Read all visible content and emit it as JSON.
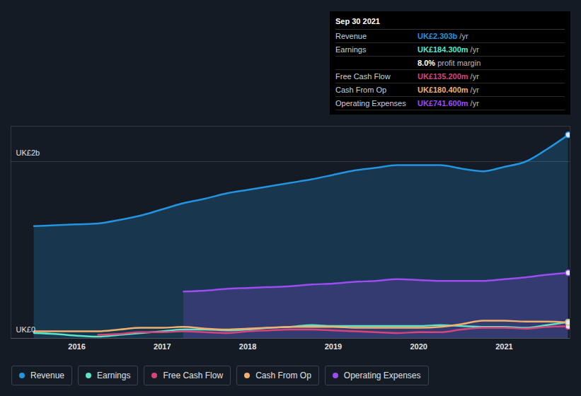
{
  "chart_data": {
    "type": "line",
    "x": [
      2015.5,
      2015.75,
      2016.0,
      2016.25,
      2016.5,
      2016.75,
      2017.0,
      2017.25,
      2017.5,
      2017.75,
      2018.0,
      2018.25,
      2018.5,
      2018.75,
      2019.0,
      2019.25,
      2019.5,
      2019.75,
      2020.0,
      2020.25,
      2020.5,
      2020.75,
      2021.0,
      2021.25,
      2021.5,
      2021.75
    ],
    "xlim": [
      2015.23,
      2021.77
    ],
    "xticks": [
      2016,
      2017,
      2018,
      2019,
      2020,
      2021
    ],
    "ylim": [
      0,
      2.4
    ],
    "yticks": [
      {
        "value": 0,
        "label": "UK£0"
      },
      {
        "value": 2,
        "label": "UK£2b"
      }
    ],
    "grid": true,
    "series": [
      {
        "name": "Revenue",
        "type": "area",
        "color": "#2394df",
        "values": [
          1.27,
          1.28,
          1.29,
          1.3,
          1.34,
          1.39,
          1.46,
          1.53,
          1.58,
          1.64,
          1.68,
          1.72,
          1.76,
          1.8,
          1.85,
          1.9,
          1.93,
          1.96,
          1.96,
          1.96,
          1.92,
          1.89,
          1.94,
          2.0,
          2.14,
          2.303
        ]
      },
      {
        "name": "Earnings",
        "type": "line",
        "color": "#5de4c7",
        "values": [
          0.06,
          0.05,
          0.03,
          0.02,
          0.04,
          0.06,
          0.08,
          0.1,
          0.1,
          0.09,
          0.1,
          0.12,
          0.13,
          0.15,
          0.14,
          0.14,
          0.14,
          0.14,
          0.14,
          0.15,
          0.14,
          0.13,
          0.13,
          0.12,
          0.15,
          0.1843
        ]
      },
      {
        "name": "Free Cash Flow",
        "type": "line",
        "color": "#d6457a",
        "values": [
          null,
          null,
          null,
          0.04,
          0.05,
          0.07,
          0.07,
          0.08,
          0.07,
          0.06,
          0.08,
          0.09,
          0.1,
          0.1,
          0.09,
          0.08,
          0.07,
          0.06,
          0.07,
          0.07,
          0.1,
          0.12,
          0.12,
          0.11,
          0.13,
          0.1352
        ]
      },
      {
        "name": "Cash From Op",
        "type": "line",
        "color": "#f0b070",
        "values": [
          0.08,
          0.08,
          0.08,
          0.08,
          0.1,
          0.12,
          0.12,
          0.13,
          0.11,
          0.1,
          0.11,
          0.12,
          0.13,
          0.13,
          0.13,
          0.12,
          0.12,
          0.12,
          0.12,
          0.13,
          0.16,
          0.2,
          0.2,
          0.19,
          0.19,
          0.1804
        ]
      },
      {
        "name": "Operating Expenses",
        "type": "area",
        "color": "#9c4cf0",
        "values": [
          null,
          null,
          null,
          null,
          null,
          null,
          null,
          0.53,
          0.54,
          0.56,
          0.57,
          0.58,
          0.59,
          0.61,
          0.62,
          0.64,
          0.65,
          0.67,
          0.66,
          0.65,
          0.65,
          0.65,
          0.67,
          0.69,
          0.72,
          0.7416
        ]
      }
    ],
    "tooltip": {
      "title": "Sep 30 2021",
      "rows": [
        {
          "label": "Revenue",
          "value": "UK£2.303b",
          "unit": "/yr"
        },
        {
          "label": "Earnings",
          "value": "UK£184.300m",
          "unit": "/yr"
        },
        {
          "value": "8.0%",
          "unit": "profit margin"
        },
        {
          "label": "Free Cash Flow",
          "value": "UK£135.200m",
          "unit": "/yr"
        },
        {
          "label": "Cash From Op",
          "value": "UK£180.400m",
          "unit": "/yr"
        },
        {
          "label": "Operating Expenses",
          "value": "UK£741.600m",
          "unit": "/yr"
        }
      ]
    }
  }
}
